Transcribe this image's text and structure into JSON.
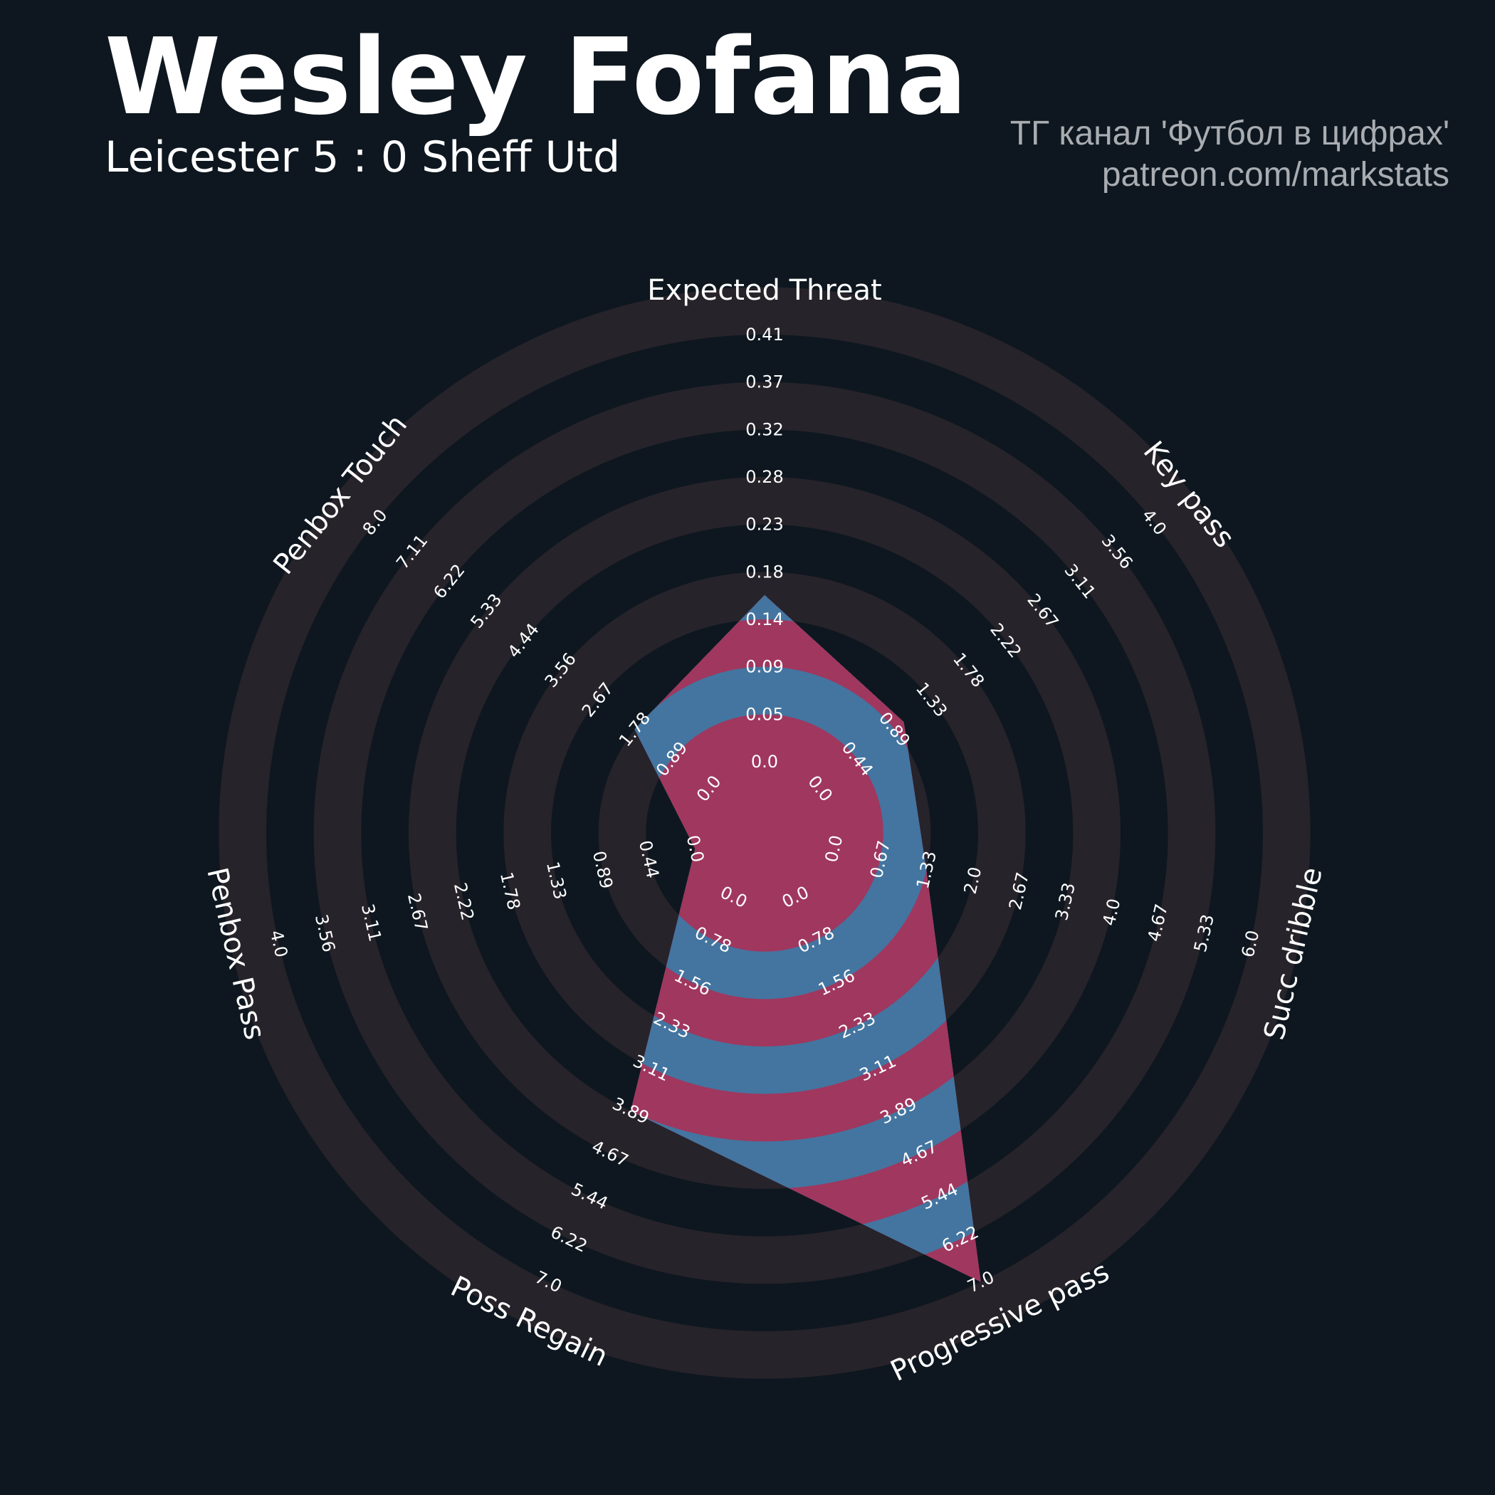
{
  "header": {
    "title": "Wesley Fofana",
    "subtitle": "Leicester 5 : 0 Sheff Utd",
    "credit_line1": "ТГ канал 'Футбол в цифрах'",
    "credit_line2": "patreon.com/markstats"
  },
  "colors": {
    "background": "#0e171f",
    "ring_band": "#27232a",
    "polygon_blue": "#4375a0",
    "polygon_red": "#a0375e",
    "text": "#ffffff",
    "credit_text": "#a9adb2"
  },
  "chart_data": {
    "type": "radar",
    "player": "Wesley Fofana",
    "params": [
      "Expected Threat",
      "Key pass",
      "Succ dribble",
      "Progressive pass",
      "Poss Regain",
      "Penbox Pass",
      "Penbox Touch"
    ],
    "values": [
      0.16,
      1.0,
      1.33,
      7.0,
      3.89,
      0.0,
      1.78
    ],
    "ranges": [
      [
        0.0,
        0.41
      ],
      [
        0.0,
        4.0
      ],
      [
        0.0,
        6.0
      ],
      [
        0.0,
        7.0
      ],
      [
        0.0,
        7.0
      ],
      [
        0.0,
        4.0
      ],
      [
        0.0,
        8.0
      ]
    ],
    "tick_labels": [
      [
        "0.0",
        "0.05",
        "0.09",
        "0.14",
        "0.18",
        "0.23",
        "0.28",
        "0.32",
        "0.37",
        "0.41"
      ],
      [
        "0.0",
        "0.44",
        "0.89",
        "1.33",
        "1.78",
        "2.22",
        "2.67",
        "3.11",
        "3.56",
        "4.0"
      ],
      [
        "0.0",
        "0.67",
        "1.33",
        "2.0",
        "2.67",
        "3.33",
        "4.0",
        "4.67",
        "5.33",
        "6.0"
      ],
      [
        "0.0",
        "0.78",
        "1.56",
        "2.33",
        "3.11",
        "3.89",
        "4.67",
        "5.44",
        "6.22",
        "7.0"
      ],
      [
        "0.0",
        "0.78",
        "1.56",
        "2.33",
        "3.11",
        "3.89",
        "4.67",
        "5.44",
        "6.22",
        "7.0"
      ],
      [
        "0.0",
        "0.44",
        "0.89",
        "1.33",
        "1.78",
        "2.22",
        "2.67",
        "3.11",
        "3.56",
        "4.0"
      ],
      [
        "0.0",
        "0.89",
        "1.78",
        "2.67",
        "3.56",
        "4.44",
        "5.33",
        "6.22",
        "7.11",
        "8.0"
      ]
    ],
    "rings": 10,
    "grid": false,
    "legend": "none"
  }
}
